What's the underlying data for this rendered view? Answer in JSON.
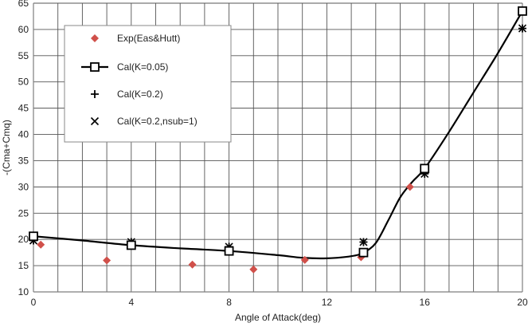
{
  "chart_data": {
    "type": "scatter",
    "title": "",
    "xlabel": "Angle of Attack(deg)",
    "ylabel": "-(Cma+Cmq)",
    "xlim": [
      0,
      20
    ],
    "ylim": [
      10,
      65
    ],
    "x_ticks": [
      0,
      4,
      8,
      12,
      16,
      20
    ],
    "x_tick_labels": [
      "0",
      "4",
      "8",
      "12",
      "16",
      "20"
    ],
    "x_minor_step": 1,
    "y_ticks": [
      10,
      15,
      20,
      25,
      30,
      35,
      40,
      45,
      50,
      55,
      60,
      65
    ],
    "y_tick_labels": [
      "10",
      "15",
      "20",
      "25",
      "30",
      "35",
      "40",
      "45",
      "50",
      "55",
      "60",
      "65"
    ],
    "grid": true,
    "legend_position": "top-left",
    "series": [
      {
        "name": "Exp(Eas&Hutt)",
        "marker": "diamond",
        "color": "#d0504a",
        "x": [
          0.3,
          3.0,
          6.5,
          9.0,
          11.1,
          13.4,
          15.4
        ],
        "y": [
          19.0,
          16.0,
          15.2,
          14.3,
          16.1,
          16.6,
          30.0
        ]
      },
      {
        "name": "Cal(K=0.05)",
        "marker": "square",
        "color": "#000000",
        "line": true,
        "x": [
          0,
          4,
          8,
          13.5,
          16,
          20
        ],
        "y": [
          20.6,
          18.9,
          17.8,
          17.5,
          33.5,
          63.5
        ]
      },
      {
        "name": "Cal(K=0.2)",
        "marker": "plus",
        "color": "#000000",
        "x": [
          0,
          4,
          8,
          13.5,
          16,
          20
        ],
        "y": [
          19.8,
          19.5,
          18.6,
          19.5,
          32.5,
          60.2
        ]
      },
      {
        "name": "Cal(K=0.2,nsub=1)",
        "marker": "cross",
        "color": "#000000",
        "x": [
          0,
          4,
          8,
          13.5,
          16,
          20
        ],
        "y": [
          19.8,
          19.5,
          18.6,
          19.5,
          32.5,
          60.2
        ]
      }
    ],
    "curve": {
      "series": "Cal(K=0.05)",
      "x": [
        0,
        2,
        4,
        6,
        8,
        10,
        11,
        12,
        13,
        13.5,
        14,
        14.5,
        15,
        15.5,
        16,
        17,
        18,
        19,
        20
      ],
      "y": [
        20.6,
        19.8,
        18.9,
        18.3,
        17.8,
        17.0,
        16.5,
        16.4,
        16.8,
        17.5,
        19.3,
        23.5,
        28.0,
        31.0,
        33.5,
        40.5,
        48.0,
        55.5,
        63.5
      ]
    }
  }
}
